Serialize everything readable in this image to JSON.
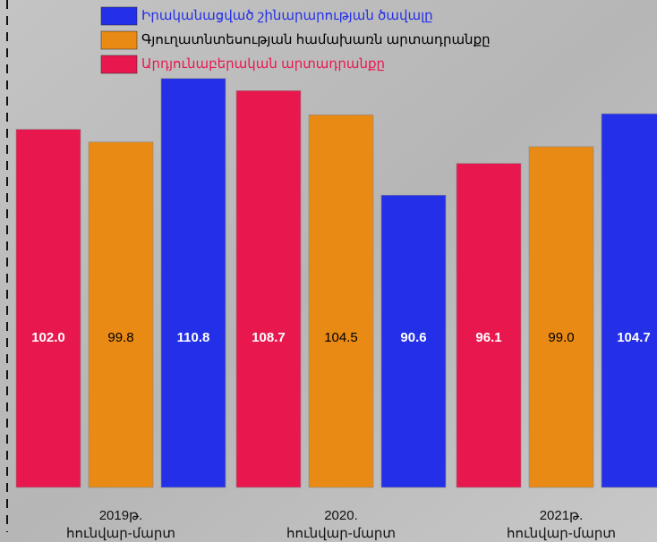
{
  "chart_data": {
    "type": "bar",
    "categories": [
      [
        "2019թ.",
        "հունվար-մարտ"
      ],
      [
        "2020.",
        "հունվար-մարտ"
      ],
      [
        "2021թ.",
        "հունվար-մարտ"
      ]
    ],
    "series": [
      {
        "name": "Արդյունաբերական արտադրանքը",
        "color": "#e8184f",
        "legend_text_color": "#e8184f",
        "value_text_color": "#ffffff",
        "values": [
          102.0,
          108.7,
          96.1
        ],
        "value_labels": [
          "102.0",
          "108.7",
          "96.1"
        ]
      },
      {
        "name": "Գյուղատնտեսության համախառն արտադրանքը",
        "color": "#e88a14",
        "legend_text_color": "#000000",
        "value_text_color": "#000000",
        "values": [
          99.8,
          104.5,
          99.0
        ],
        "value_labels": [
          "99.8",
          "104.5",
          "99.0"
        ]
      },
      {
        "name": "Իրականացված շինարարության ծավալը",
        "color": "#2430e8",
        "legend_text_color": "#2430e8",
        "value_text_color": "#ffffff",
        "values": [
          110.8,
          90.6,
          104.7
        ],
        "value_labels": [
          "110.8",
          "90.6",
          "104.7"
        ]
      }
    ],
    "ylim": [
      40,
      112
    ]
  }
}
